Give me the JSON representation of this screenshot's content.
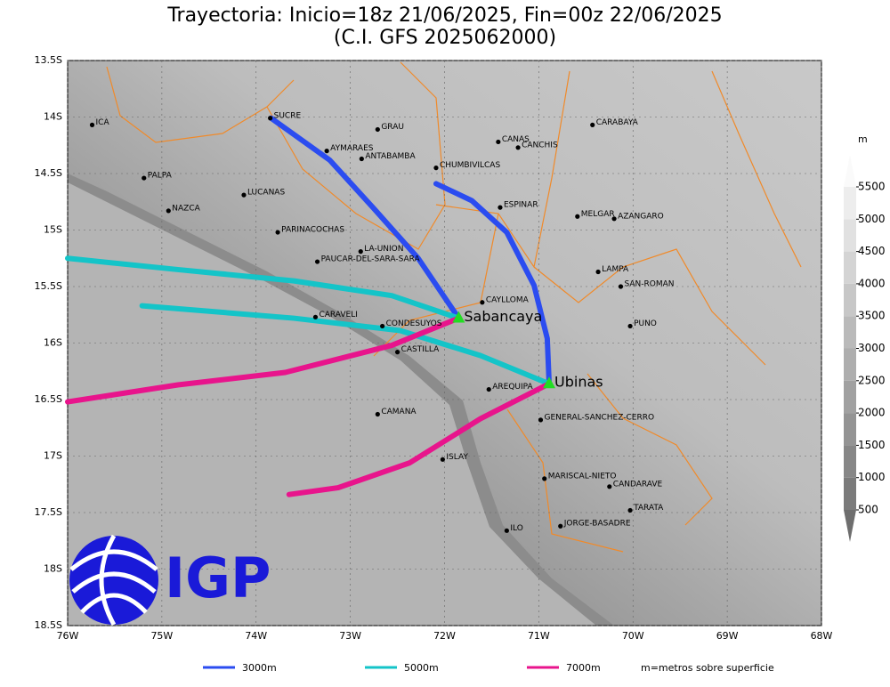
{
  "title": "Trayectoria: Inicio=18z 21/06/2025, Fin=00z 22/06/2025",
  "subtitle": "(C.I. GFS 2025062000)",
  "xlim": [
    -76,
    -68
  ],
  "ylim": [
    -18.5,
    -13.5
  ],
  "xticks": [
    {
      "value": -76,
      "label": "76W"
    },
    {
      "value": -75,
      "label": "75W"
    },
    {
      "value": -74,
      "label": "74W"
    },
    {
      "value": -73,
      "label": "73W"
    },
    {
      "value": -72,
      "label": "72W"
    },
    {
      "value": -71,
      "label": "71W"
    },
    {
      "value": -70,
      "label": "70W"
    },
    {
      "value": -69,
      "label": "69W"
    },
    {
      "value": -68,
      "label": "68W"
    }
  ],
  "yticks": [
    {
      "value": -13.5,
      "label": "13.5S"
    },
    {
      "value": -14,
      "label": "14S"
    },
    {
      "value": -14.5,
      "label": "14.5S"
    },
    {
      "value": -15,
      "label": "15S"
    },
    {
      "value": -15.5,
      "label": "15.5S"
    },
    {
      "value": -16,
      "label": "16S"
    },
    {
      "value": -16.5,
      "label": "16.5S"
    },
    {
      "value": -17,
      "label": "17S"
    },
    {
      "value": -17.5,
      "label": "17.5S"
    },
    {
      "value": -18,
      "label": "18S"
    },
    {
      "value": -18.5,
      "label": "18.5S"
    }
  ],
  "colorbar": {
    "unit": "m",
    "ticks": [
      500,
      1000,
      1500,
      2000,
      2500,
      3000,
      3500,
      4000,
      4500,
      5000,
      5500
    ]
  },
  "places": [
    {
      "name": "ICA",
      "lon": -75.74,
      "lat": -14.07
    },
    {
      "name": "SUCRE",
      "lon": -73.85,
      "lat": -14.01
    },
    {
      "name": "GRAU",
      "lon": -72.71,
      "lat": -14.11
    },
    {
      "name": "AYMARAES",
      "lon": -73.25,
      "lat": -14.3
    },
    {
      "name": "ANTABAMBA",
      "lon": -72.88,
      "lat": -14.37
    },
    {
      "name": "CANAS",
      "lon": -71.43,
      "lat": -14.22
    },
    {
      "name": "CANCHIS",
      "lon": -71.22,
      "lat": -14.27
    },
    {
      "name": "CARABAYA",
      "lon": -70.43,
      "lat": -14.07
    },
    {
      "name": "CHUMBIVILCAS",
      "lon": -72.09,
      "lat": -14.45
    },
    {
      "name": "PALPA",
      "lon": -75.19,
      "lat": -14.54
    },
    {
      "name": "LUCANAS",
      "lon": -74.13,
      "lat": -14.69
    },
    {
      "name": "NAZCA",
      "lon": -74.93,
      "lat": -14.83
    },
    {
      "name": "ESPINAR",
      "lon": -71.41,
      "lat": -14.8
    },
    {
      "name": "MELGAR",
      "lon": -70.59,
      "lat": -14.88
    },
    {
      "name": "AZANGARO",
      "lon": -70.2,
      "lat": -14.9
    },
    {
      "name": "PARINACOCHAS",
      "lon": -73.77,
      "lat": -15.02
    },
    {
      "name": "LA-UNION",
      "lon": -72.89,
      "lat": -15.19
    },
    {
      "name": "PAUCAR-DEL-SARA-SARA",
      "lon": -73.35,
      "lat": -15.28
    },
    {
      "name": "LAMPA",
      "lon": -70.37,
      "lat": -15.37
    },
    {
      "name": "SAN-ROMAN",
      "lon": -70.13,
      "lat": -15.5
    },
    {
      "name": "CAYLLOMA",
      "lon": -71.6,
      "lat": -15.64
    },
    {
      "name": "CARAVELI",
      "lon": -73.37,
      "lat": -15.77
    },
    {
      "name": "CONDESUYOS",
      "lon": -72.66,
      "lat": -15.85
    },
    {
      "name": "PUNO",
      "lon": -70.03,
      "lat": -15.85
    },
    {
      "name": "CASTILLA",
      "lon": -72.5,
      "lat": -16.08
    },
    {
      "name": "AREQUIPA",
      "lon": -71.53,
      "lat": -16.41
    },
    {
      "name": "GENERAL-SANCHEZ-CERRO",
      "lon": -70.98,
      "lat": -16.68
    },
    {
      "name": "CAMANA",
      "lon": -72.71,
      "lat": -16.63
    },
    {
      "name": "ISLAY",
      "lon": -72.02,
      "lat": -17.03
    },
    {
      "name": "MARISCAL-NIETO",
      "lon": -70.94,
      "lat": -17.2
    },
    {
      "name": "CANDARAVE",
      "lon": -70.25,
      "lat": -17.27
    },
    {
      "name": "TARATA",
      "lon": -70.03,
      "lat": -17.48
    },
    {
      "name": "ILO",
      "lon": -71.34,
      "lat": -17.66
    },
    {
      "name": "JORGE-BASADRE",
      "lon": -70.77,
      "lat": -17.62
    }
  ],
  "volcanoes": [
    {
      "name": "Sabancaya",
      "lon": -71.85,
      "lat": -15.78
    },
    {
      "name": "Ubinas",
      "lon": -70.89,
      "lat": -16.36
    }
  ],
  "trajectories": [
    {
      "name": "3000m",
      "color": "#2b4cf0",
      "lon": [
        -71.85,
        -72.28,
        -72.75,
        -73.22,
        -73.84
      ],
      "lat": [
        -15.78,
        -15.25,
        -14.81,
        -14.38,
        -14.01
      ]
    },
    {
      "name": "3000m",
      "color": "#2b4cf0",
      "lon": [
        -70.89,
        -70.91,
        -71.05,
        -71.34,
        -71.71,
        -72.09
      ],
      "lat": [
        -16.36,
        -15.96,
        -15.49,
        -15.02,
        -14.74,
        -14.59
      ]
    },
    {
      "name": "5000m",
      "color": "#14c4c8",
      "lon": [
        -71.85,
        -72.56,
        -73.6,
        -74.83,
        -76
      ],
      "lat": [
        -15.78,
        -15.58,
        -15.45,
        -15.35,
        -15.25
      ]
    },
    {
      "name": "5000m",
      "color": "#14c4c8",
      "lon": [
        -70.89,
        -71.62,
        -72.47,
        -73.6,
        -75.21
      ],
      "lat": [
        -16.36,
        -16.11,
        -15.89,
        -15.78,
        -15.67
      ]
    },
    {
      "name": "7000m",
      "color": "#e8148c",
      "lon": [
        -71.85,
        -72.56,
        -73.69,
        -74.83,
        -76
      ],
      "lat": [
        -15.78,
        -16.02,
        -16.26,
        -16.37,
        -16.52
      ]
    },
    {
      "name": "7000m",
      "color": "#e8148c",
      "lon": [
        -70.89,
        -71.62,
        -72.37,
        -73.13,
        -73.65
      ],
      "lat": [
        -16.36,
        -16.67,
        -17.06,
        -17.28,
        -17.34
      ]
    }
  ],
  "legend": [
    {
      "name": "3000m",
      "color": "#2b4cf0"
    },
    {
      "name": "5000m",
      "color": "#14c4c8"
    },
    {
      "name": "7000m",
      "color": "#e8148c"
    }
  ],
  "legend_note": "m=metros sobre superficie",
  "logo": "IGP"
}
